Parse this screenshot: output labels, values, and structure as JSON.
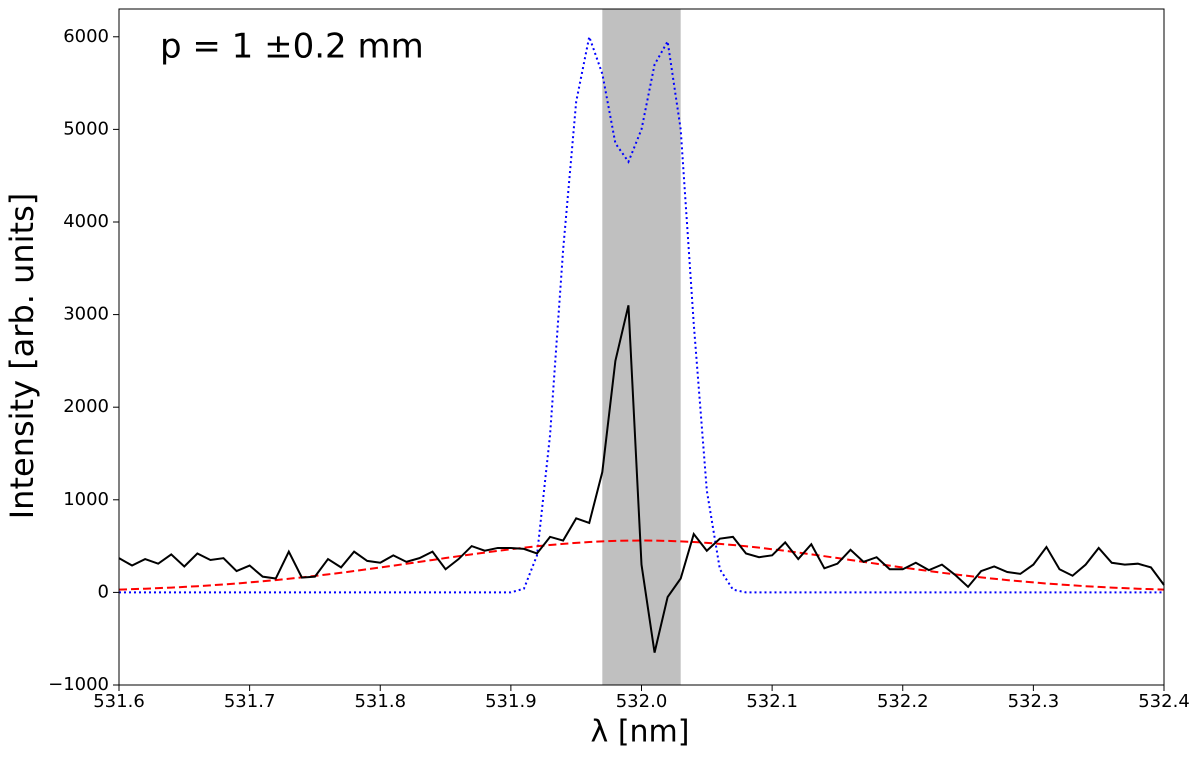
{
  "chart_data": {
    "type": "line",
    "annotation": "p = 1 ±0.2 mm",
    "xlabel": "λ [nm]",
    "ylabel": "Intensity [arb. units]",
    "xlim": [
      531.6,
      532.4
    ],
    "ylim": [
      -1000,
      6300
    ],
    "xticks": [
      531.6,
      531.7,
      531.8,
      531.9,
      {
        "value": 532,
        "label": "532.0"
      },
      532.1,
      532.2,
      532.3,
      532.4
    ],
    "yticks": [
      {
        "value": -1000,
        "label": "−1000"
      },
      0,
      1000,
      2000,
      3000,
      4000,
      5000,
      6000
    ],
    "shade": {
      "xrange": [
        531.97,
        532.03
      ],
      "color": "#c0c0c0"
    },
    "x": [
      531.6,
      531.61,
      531.62,
      531.63,
      531.64,
      531.65,
      531.66,
      531.67,
      531.68,
      531.69,
      531.7,
      531.71,
      531.72,
      531.73,
      531.74,
      531.75,
      531.76,
      531.77,
      531.78,
      531.79,
      531.8,
      531.81,
      531.82,
      531.83,
      531.84,
      531.85,
      531.86,
      531.87,
      531.88,
      531.89,
      531.9,
      531.91,
      531.92,
      531.93,
      531.94,
      531.95,
      531.96,
      531.97,
      531.98,
      531.99,
      532,
      532.01,
      532.02,
      532.03,
      532.04,
      532.05,
      532.06,
      532.07,
      532.08,
      532.09,
      532.1,
      532.11,
      532.12,
      532.13,
      532.14,
      532.15,
      532.16,
      532.17,
      532.18,
      532.19,
      532.2,
      532.21,
      532.22,
      532.23,
      532.24,
      532.25,
      532.26,
      532.27,
      532.28,
      532.29,
      532.3,
      532.31,
      532.32,
      532.33,
      532.34,
      532.35,
      532.36,
      532.37,
      532.38,
      532.39,
      532.4
    ],
    "series": [
      {
        "color": "#0000ff",
        "linestyle": "dotted",
        "values": [
          0,
          0,
          0,
          0,
          0,
          0,
          0,
          0,
          0,
          0,
          0,
          0,
          0,
          0,
          0,
          0,
          0,
          0,
          0,
          0,
          0,
          0,
          0,
          0,
          0,
          0,
          0,
          0,
          0,
          0,
          0,
          40,
          400,
          1700,
          3700,
          5300,
          6000,
          5600,
          4850,
          4650,
          5000,
          5700,
          5950,
          5000,
          2900,
          1100,
          250,
          30,
          0,
          0,
          0,
          0,
          0,
          0,
          0,
          0,
          0,
          0,
          0,
          0,
          0,
          0,
          0,
          0,
          0,
          0,
          0,
          0,
          0,
          0,
          0,
          0,
          0,
          0,
          0,
          0,
          0,
          0,
          0,
          0,
          0
        ]
      },
      {
        "color": "#ff0000",
        "linestyle": "dashed",
        "values": [
          30,
          35,
          40,
          46,
          52,
          59,
          67,
          76,
          86,
          96,
          108,
          120,
          133,
          147,
          162,
          178,
          195,
          212,
          231,
          250,
          269,
          289,
          309,
          330,
          350,
          371,
          391,
          411,
          430,
          449,
          466,
          483,
          498,
          512,
          524,
          535,
          544,
          551,
          556,
          559,
          560,
          559,
          556,
          551,
          544,
          535,
          524,
          512,
          498,
          483,
          466,
          449,
          430,
          411,
          391,
          371,
          350,
          330,
          309,
          289,
          269,
          250,
          231,
          212,
          195,
          178,
          162,
          147,
          133,
          120,
          108,
          96,
          86,
          76,
          67,
          59,
          52,
          46,
          40,
          35,
          30
        ]
      },
      {
        "color": "#000000",
        "linestyle": "solid",
        "values": [
          370,
          290,
          360,
          310,
          410,
          280,
          420,
          350,
          370,
          230,
          290,
          170,
          150,
          440,
          160,
          170,
          360,
          270,
          440,
          340,
          320,
          400,
          330,
          370,
          440,
          250,
          360,
          500,
          450,
          480,
          480,
          470,
          420,
          600,
          560,
          800,
          750,
          1300,
          2500,
          3100,
          300,
          -650,
          -50,
          150,
          630,
          450,
          580,
          600,
          420,
          380,
          400,
          540,
          360,
          520,
          260,
          310,
          460,
          330,
          380,
          250,
          250,
          320,
          240,
          300,
          190,
          60,
          230,
          280,
          220,
          200,
          300,
          490,
          250,
          180,
          300,
          480,
          320,
          300,
          310,
          270,
          80
        ]
      }
    ]
  }
}
